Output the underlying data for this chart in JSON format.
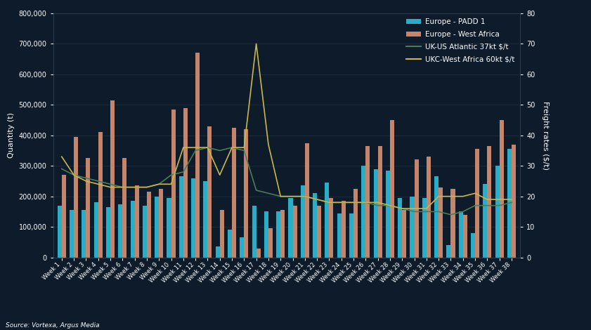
{
  "weeks": [
    "Week 1",
    "Week 2",
    "Week 3",
    "Week 4",
    "Week 5",
    "Week 6",
    "Week 7",
    "Week 8",
    "Week 9",
    "Week 10",
    "Week 11",
    "Week 12",
    "Week 13",
    "Week 14",
    "Week 15",
    "Week 16",
    "Week 17",
    "Week 18",
    "Week 19",
    "Week 20",
    "Week 21",
    "Week 22",
    "Week 23",
    "Week 24",
    "Week 25",
    "Week 26",
    "Week 27",
    "Week 28",
    "Week 29",
    "Week 30",
    "Week 31",
    "Week 32",
    "Week 33",
    "Week 34",
    "Week 35",
    "Week 36",
    "Week 37",
    "Week 38"
  ],
  "europe_padd1": [
    170000,
    155000,
    155000,
    180000,
    165000,
    175000,
    185000,
    170000,
    200000,
    195000,
    265000,
    260000,
    250000,
    35000,
    90000,
    65000,
    170000,
    150000,
    150000,
    195000,
    235000,
    210000,
    245000,
    145000,
    145000,
    300000,
    290000,
    285000,
    195000,
    200000,
    195000,
    265000,
    40000,
    150000,
    80000,
    240000,
    300000,
    355000
  ],
  "europe_west_africa": [
    270000,
    395000,
    325000,
    410000,
    515000,
    325000,
    235000,
    215000,
    225000,
    485000,
    490000,
    670000,
    430000,
    155000,
    425000,
    420000,
    30000,
    95000,
    155000,
    170000,
    375000,
    170000,
    195000,
    185000,
    225000,
    365000,
    365000,
    450000,
    155000,
    320000,
    330000,
    230000,
    225000,
    140000,
    355000,
    365000,
    450000,
    370000
  ],
  "uk_us_atlantic": [
    29,
    27,
    26,
    25,
    24,
    23,
    23,
    23,
    24,
    27,
    28,
    35,
    36,
    35,
    36,
    35,
    22,
    21,
    20,
    20,
    20,
    19,
    18,
    18,
    18,
    18,
    17,
    17,
    16,
    15,
    15,
    15,
    14,
    15,
    17,
    17,
    17,
    18
  ],
  "ukc_west_africa": [
    33,
    27,
    25,
    24,
    23,
    23,
    23,
    23,
    24,
    24,
    36,
    36,
    36,
    27,
    36,
    36,
    70,
    37,
    20,
    20,
    20,
    19,
    18,
    18,
    18,
    18,
    18,
    17,
    16,
    16,
    16,
    20,
    20,
    20,
    21,
    19,
    19,
    19
  ],
  "background_color": "#0d1b2a",
  "bar_color_padd1": "#29aec7",
  "bar_color_westaf": "#c4856a",
  "line_color_ukus": "#4a7c59",
  "line_color_ukcwaf": "#c8b84a",
  "ylabel_left": "Quantity (t)",
  "ylabel_right": "Freight rates ($/t)",
  "ylim_left": [
    0,
    800000
  ],
  "ylim_right": [
    0,
    80
  ],
  "source": "Source: Vortexa, Argus Media",
  "legend_labels": [
    "Europe - PADD 1",
    "Europe - West Africa",
    "UK-US Atlantic 37kt $/t",
    "UKC-West Africa 60kt $/t"
  ]
}
